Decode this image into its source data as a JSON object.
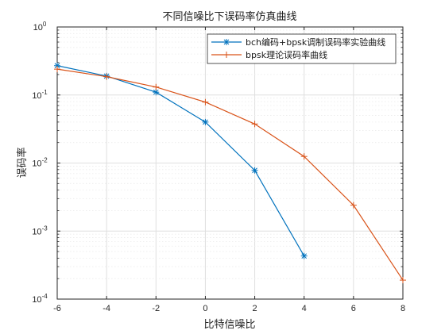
{
  "chart_data": {
    "type": "line",
    "title": "不同信噪比下误码率仿真曲线",
    "xlabel": "比特信噪比",
    "ylabel": "误码率",
    "xlim": [
      -6,
      8
    ],
    "ylim": [
      0.0001,
      1
    ],
    "y_scale": "log",
    "grid": true,
    "legend_position": "top-right",
    "x_ticks": [
      "-6",
      "-4",
      "-2",
      "0",
      "2",
      "4",
      "6",
      "8"
    ],
    "y_ticks": [
      {
        "base": "10",
        "exp": "0",
        "value": 1
      },
      {
        "base": "10",
        "exp": "-1",
        "value": 0.1
      },
      {
        "base": "10",
        "exp": "-2",
        "value": 0.01
      },
      {
        "base": "10",
        "exp": "-3",
        "value": 0.001
      },
      {
        "base": "10",
        "exp": "-4",
        "value": 0.0001
      }
    ],
    "series": [
      {
        "name": "bch编码+bpsk调制误码率实验曲线",
        "color": "#0072bd",
        "marker": "asterisk",
        "x": [
          -6,
          -4,
          -2,
          0,
          2,
          4
        ],
        "y": [
          0.27,
          0.19,
          0.11,
          0.04,
          0.0078,
          0.00043
        ]
      },
      {
        "name": "bpsk理论误码率曲线",
        "color": "#d95319",
        "marker": "plus",
        "x": [
          -6,
          -4,
          -2,
          0,
          2,
          4,
          6,
          8
        ],
        "y": [
          0.24,
          0.186,
          0.131,
          0.0786,
          0.0375,
          0.0125,
          0.0024,
          0.00019
        ]
      }
    ]
  }
}
